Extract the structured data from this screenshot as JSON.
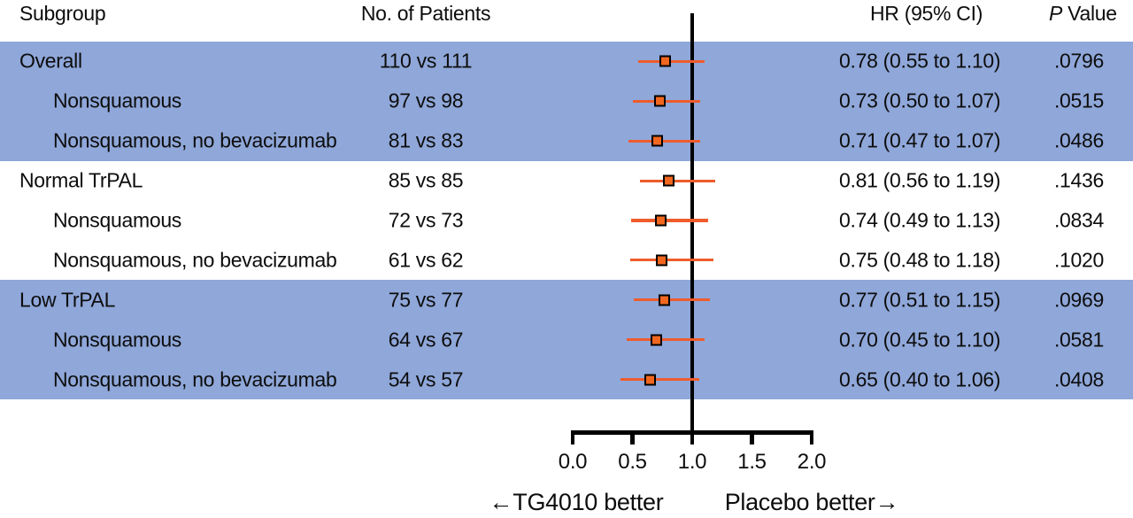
{
  "figure": {
    "header": {
      "subgroup": "Subgroup",
      "patients": "No. of Patients",
      "hr": "HR (95% CI)",
      "p_italic": "P",
      "p_rest": " Value"
    },
    "colors": {
      "band": "#8FA7D9",
      "ci_line": "#EF5C2B",
      "marker_fill": "#F2671F",
      "marker_border": "#000000",
      "axis": "#000000"
    }
  },
  "chart_data": {
    "type": "scatter",
    "variant": "forest-plot",
    "columns": [
      "Subgroup",
      "No. of Patients",
      "HR (95% CI)",
      "P Value"
    ],
    "xlim": [
      0.0,
      2.0
    ],
    "xtick_values": [
      0.0,
      0.5,
      1.0,
      1.5,
      2.0
    ],
    "xtick_labels": [
      "0.0",
      "0.5",
      "1.0",
      "1.5",
      "2.0"
    ],
    "reference_line": 1.0,
    "xlabel_left": "←TG4010 better",
    "xlabel_right": "Placebo better→",
    "rows": [
      {
        "subgroup": "Overall",
        "indent": false,
        "patients": "110 vs 111",
        "hr": 0.78,
        "ci_low": 0.55,
        "ci_high": 1.1,
        "hr_ci": "0.78 (0.55 to 1.10)",
        "p": ".0796",
        "shaded": true
      },
      {
        "subgroup": "Nonsquamous",
        "indent": true,
        "patients": "97 vs 98",
        "hr": 0.73,
        "ci_low": 0.5,
        "ci_high": 1.07,
        "hr_ci": "0.73 (0.50 to 1.07)",
        "p": ".0515",
        "shaded": true
      },
      {
        "subgroup": "Nonsquamous, no bevacizumab",
        "indent": true,
        "patients": "81 vs 83",
        "hr": 0.71,
        "ci_low": 0.47,
        "ci_high": 1.07,
        "hr_ci": "0.71 (0.47 to 1.07)",
        "p": ".0486",
        "shaded": true
      },
      {
        "subgroup": "Normal TrPAL",
        "indent": false,
        "patients": "85 vs 85",
        "hr": 0.81,
        "ci_low": 0.56,
        "ci_high": 1.19,
        "hr_ci": "0.81 (0.56 to 1.19)",
        "p": ".1436",
        "shaded": false
      },
      {
        "subgroup": "Nonsquamous",
        "indent": true,
        "patients": "72 vs 73",
        "hr": 0.74,
        "ci_low": 0.49,
        "ci_high": 1.13,
        "hr_ci": "0.74 (0.49 to 1.13)",
        "p": ".0834",
        "shaded": false
      },
      {
        "subgroup": "Nonsquamous, no bevacizumab",
        "indent": true,
        "patients": "61 vs 62",
        "hr": 0.75,
        "ci_low": 0.48,
        "ci_high": 1.18,
        "hr_ci": "0.75 (0.48 to 1.18)",
        "p": ".1020",
        "shaded": false
      },
      {
        "subgroup": "Low TrPAL",
        "indent": false,
        "patients": "75 vs 77",
        "hr": 0.77,
        "ci_low": 0.51,
        "ci_high": 1.15,
        "hr_ci": "0.77 (0.51 to 1.15)",
        "p": ".0969",
        "shaded": true
      },
      {
        "subgroup": "Nonsquamous",
        "indent": true,
        "patients": "64 vs 67",
        "hr": 0.7,
        "ci_low": 0.45,
        "ci_high": 1.1,
        "hr_ci": "0.70 (0.45 to 1.10)",
        "p": ".0581",
        "shaded": true
      },
      {
        "subgroup": "Nonsquamous, no bevacizumab",
        "indent": true,
        "patients": "54 vs 57",
        "hr": 0.65,
        "ci_low": 0.4,
        "ci_high": 1.06,
        "hr_ci": "0.65 (0.40 to 1.06)",
        "p": ".0408",
        "shaded": true
      }
    ]
  }
}
